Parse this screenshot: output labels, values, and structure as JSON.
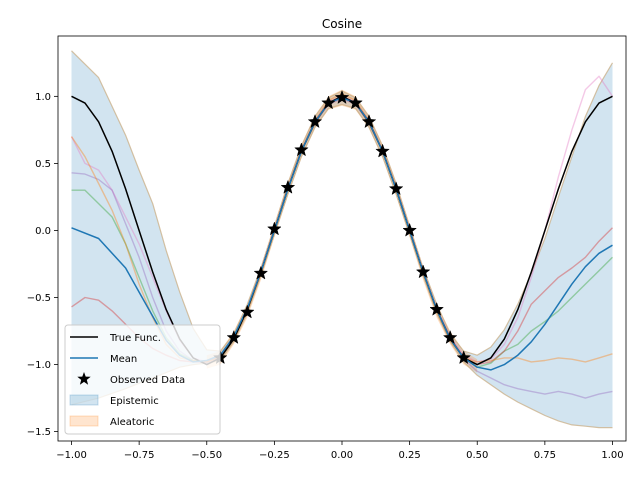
{
  "chart_data": {
    "type": "line",
    "title": "Cosine",
    "xlim": [
      -1.05,
      1.05
    ],
    "ylim": [
      -1.57,
      1.45
    ],
    "x_ticks": [
      -1.0,
      -0.75,
      -0.5,
      -0.25,
      0.0,
      0.25,
      0.5,
      0.75,
      1.0
    ],
    "x_tick_labels": [
      "−1.00",
      "−0.75",
      "−0.50",
      "−0.25",
      "0.00",
      "0.25",
      "0.50",
      "0.75",
      "1.00"
    ],
    "y_ticks": [
      -1.5,
      -1.0,
      -0.5,
      0.0,
      0.5,
      1.0
    ],
    "y_tick_labels": [
      "−1.5",
      "−1.0",
      "−0.5",
      "0.0",
      "0.5",
      "1.0"
    ],
    "grid": false,
    "legend_position": "lower-left",
    "true_function": {
      "name": "True Func.",
      "color": "#000000",
      "x": [
        -1.0,
        -0.95,
        -0.9,
        -0.85,
        -0.8,
        -0.75,
        -0.7,
        -0.65,
        -0.6,
        -0.55,
        -0.5,
        -0.45,
        -0.4,
        -0.35,
        -0.3,
        -0.25,
        -0.2,
        -0.15,
        -0.1,
        -0.05,
        0.0,
        0.05,
        0.1,
        0.15,
        0.2,
        0.25,
        0.3,
        0.35,
        0.4,
        0.45,
        0.5,
        0.55,
        0.6,
        0.65,
        0.7,
        0.75,
        0.8,
        0.85,
        0.9,
        0.95,
        1.0
      ],
      "y": [
        1.0,
        0.95,
        0.81,
        0.59,
        0.31,
        0.0,
        -0.31,
        -0.59,
        -0.81,
        -0.95,
        -1.0,
        -0.95,
        -0.81,
        -0.59,
        -0.31,
        0.0,
        0.31,
        0.59,
        0.81,
        0.95,
        1.0,
        0.95,
        0.81,
        0.59,
        0.31,
        0.0,
        -0.31,
        -0.59,
        -0.81,
        -0.95,
        -1.0,
        -0.95,
        -0.81,
        -0.59,
        -0.31,
        0.0,
        0.31,
        0.59,
        0.81,
        0.95,
        1.0
      ]
    },
    "mean": {
      "name": "Mean",
      "color": "#1f77b4",
      "x": [
        -1.0,
        -0.9,
        -0.8,
        -0.75,
        -0.7,
        -0.65,
        -0.6,
        -0.55,
        -0.5,
        -0.45,
        -0.4,
        -0.35,
        -0.3,
        -0.25,
        -0.2,
        -0.15,
        -0.1,
        -0.05,
        0.0,
        0.05,
        0.1,
        0.15,
        0.2,
        0.25,
        0.3,
        0.35,
        0.4,
        0.45,
        0.5,
        0.55,
        0.6,
        0.65,
        0.7,
        0.75,
        0.8,
        0.85,
        0.9,
        0.95,
        1.0
      ],
      "y": [
        0.02,
        -0.06,
        -0.28,
        -0.46,
        -0.64,
        -0.82,
        -0.93,
        -0.98,
        -0.97,
        -0.93,
        -0.79,
        -0.58,
        -0.31,
        0.0,
        0.31,
        0.59,
        0.81,
        0.95,
        0.99,
        0.95,
        0.81,
        0.59,
        0.31,
        0.0,
        -0.31,
        -0.59,
        -0.81,
        -0.95,
        -1.02,
        -1.04,
        -1.0,
        -0.93,
        -0.83,
        -0.7,
        -0.55,
        -0.4,
        -0.27,
        -0.17,
        -0.11
      ]
    },
    "observed_data": {
      "name": "Observed Data",
      "color": "#000000",
      "x": [
        -0.45,
        -0.4,
        -0.35,
        -0.3,
        -0.25,
        -0.2,
        -0.15,
        -0.1,
        -0.05,
        0.0,
        0.05,
        0.1,
        0.15,
        0.2,
        0.25,
        0.3,
        0.35,
        0.4,
        0.45
      ],
      "y": [
        -0.95,
        -0.8,
        -0.61,
        -0.32,
        0.01,
        0.32,
        0.6,
        0.81,
        0.95,
        0.99,
        0.95,
        0.81,
        0.59,
        0.31,
        0.0,
        -0.31,
        -0.59,
        -0.8,
        -0.95
      ]
    },
    "epistemic": {
      "name": "Epistemic",
      "color": "#1f77b4",
      "x": [
        -1.0,
        -0.9,
        -0.8,
        -0.75,
        -0.7,
        -0.65,
        -0.6,
        -0.55,
        -0.5,
        -0.45,
        -0.4,
        -0.35,
        -0.3,
        -0.25,
        -0.2,
        -0.15,
        -0.1,
        -0.05,
        0.0,
        0.05,
        0.1,
        0.15,
        0.2,
        0.25,
        0.3,
        0.35,
        0.4,
        0.45,
        0.5,
        0.55,
        0.6,
        0.65,
        0.7,
        0.75,
        0.8,
        0.85,
        0.9,
        0.95,
        1.0
      ],
      "upper": [
        1.34,
        1.14,
        0.71,
        0.45,
        0.2,
        -0.15,
        -0.46,
        -0.73,
        -0.89,
        -0.9,
        -0.77,
        -0.55,
        -0.28,
        0.03,
        0.35,
        0.63,
        0.85,
        0.99,
        1.04,
        0.99,
        0.85,
        0.63,
        0.35,
        0.03,
        -0.28,
        -0.55,
        -0.77,
        -0.9,
        -0.93,
        -0.87,
        -0.74,
        -0.55,
        -0.32,
        -0.06,
        0.25,
        0.55,
        0.85,
        1.08,
        1.25
      ],
      "lower": [
        -1.3,
        -1.25,
        -1.18,
        -1.14,
        -1.1,
        -1.06,
        -1.02,
        -1.0,
        -0.99,
        -0.97,
        -0.83,
        -0.62,
        -0.34,
        -0.03,
        0.27,
        0.55,
        0.77,
        0.91,
        0.94,
        0.91,
        0.77,
        0.55,
        0.27,
        -0.03,
        -0.34,
        -0.62,
        -0.83,
        -0.98,
        -1.08,
        -1.15,
        -1.22,
        -1.28,
        -1.33,
        -1.38,
        -1.42,
        -1.45,
        -1.46,
        -1.47,
        -1.47
      ]
    },
    "aleatoric": {
      "name": "Aleatoric",
      "color": "#ff7f0e",
      "x": [
        -0.5,
        -0.45,
        -0.4,
        -0.35,
        -0.3,
        -0.25,
        -0.2,
        -0.15,
        -0.1,
        -0.05,
        0.0,
        0.05,
        0.1,
        0.15,
        0.2,
        0.25,
        0.3,
        0.35,
        0.4,
        0.45,
        0.5
      ],
      "upper": [
        -0.93,
        -0.9,
        -0.75,
        -0.55,
        -0.27,
        0.05,
        0.36,
        0.64,
        0.86,
        1.0,
        1.05,
        1.0,
        0.86,
        0.64,
        0.36,
        0.05,
        -0.27,
        -0.55,
        -0.75,
        -0.9,
        -0.96
      ],
      "lower": [
        -1.03,
        -1.0,
        -0.85,
        -0.65,
        -0.37,
        -0.05,
        0.26,
        0.54,
        0.76,
        0.9,
        0.93,
        0.9,
        0.76,
        0.54,
        0.26,
        -0.05,
        -0.37,
        -0.65,
        -0.85,
        -1.0,
        -1.06
      ]
    },
    "samples": [
      {
        "color": "#e377c2",
        "x": [
          -1.0,
          -0.95,
          -0.9,
          -0.85,
          -0.8,
          -0.75,
          -0.7,
          -0.65,
          -0.6,
          -0.55,
          -0.5,
          -0.45,
          -0.4,
          -0.35,
          -0.3,
          -0.25,
          -0.2,
          -0.15,
          -0.1,
          -0.05,
          0.0,
          0.05,
          0.1,
          0.15,
          0.2,
          0.25,
          0.3,
          0.35,
          0.4,
          0.45,
          0.5,
          0.55,
          0.6,
          0.65,
          0.7,
          0.75,
          0.8,
          0.85,
          0.9,
          0.95,
          1.0
        ],
        "y": [
          0.7,
          0.5,
          0.45,
          0.3,
          0.1,
          -0.1,
          -0.35,
          -0.6,
          -0.82,
          -0.95,
          -0.98,
          -0.93,
          -0.79,
          -0.58,
          -0.3,
          0.01,
          0.32,
          0.6,
          0.82,
          0.96,
          1.0,
          0.96,
          0.82,
          0.6,
          0.32,
          0.01,
          -0.3,
          -0.58,
          -0.79,
          -0.93,
          -0.98,
          -0.96,
          -0.85,
          -0.65,
          -0.35,
          0.0,
          0.4,
          0.75,
          1.05,
          1.15,
          1.0
        ]
      },
      {
        "color": "#9467bd",
        "x": [
          -1.0,
          -0.95,
          -0.9,
          -0.85,
          -0.8,
          -0.75,
          -0.7,
          -0.65,
          -0.6,
          -0.55,
          -0.5,
          -0.45,
          -0.4,
          -0.35,
          -0.3,
          -0.25,
          -0.2,
          -0.15,
          -0.1,
          -0.05,
          0.0,
          0.05,
          0.1,
          0.15,
          0.2,
          0.25,
          0.3,
          0.35,
          0.4,
          0.45,
          0.5,
          0.55,
          0.6,
          0.65,
          0.7,
          0.75,
          0.8,
          0.85,
          0.9,
          0.95,
          1.0
        ],
        "y": [
          0.43,
          0.42,
          0.38,
          0.3,
          0.05,
          -0.2,
          -0.5,
          -0.75,
          -0.9,
          -0.97,
          -0.99,
          -0.94,
          -0.8,
          -0.59,
          -0.31,
          0.0,
          0.31,
          0.59,
          0.8,
          0.94,
          0.98,
          0.94,
          0.8,
          0.59,
          0.31,
          0.0,
          -0.31,
          -0.59,
          -0.8,
          -0.96,
          -1.05,
          -1.1,
          -1.15,
          -1.18,
          -1.2,
          -1.22,
          -1.2,
          -1.22,
          -1.25,
          -1.22,
          -1.2
        ]
      },
      {
        "color": "#2ca02c",
        "x": [
          -1.0,
          -0.95,
          -0.9,
          -0.85,
          -0.8,
          -0.75,
          -0.7,
          -0.65,
          -0.6,
          -0.55,
          -0.5,
          -0.45,
          -0.4,
          -0.35,
          -0.3,
          -0.25,
          -0.2,
          -0.15,
          -0.1,
          -0.05,
          0.0,
          0.05,
          0.1,
          0.15,
          0.2,
          0.25,
          0.3,
          0.35,
          0.4,
          0.45,
          0.5,
          0.55,
          0.6,
          0.65,
          0.7,
          0.75,
          0.8,
          0.85,
          0.9,
          0.95,
          1.0
        ],
        "y": [
          0.3,
          0.3,
          0.2,
          0.1,
          -0.1,
          -0.35,
          -0.6,
          -0.8,
          -0.92,
          -0.97,
          -0.98,
          -0.94,
          -0.8,
          -0.59,
          -0.31,
          0.0,
          0.31,
          0.59,
          0.8,
          0.95,
          0.99,
          0.95,
          0.8,
          0.59,
          0.31,
          0.0,
          -0.31,
          -0.59,
          -0.8,
          -0.95,
          -1.02,
          -0.99,
          -0.9,
          -0.85,
          -0.75,
          -0.68,
          -0.6,
          -0.5,
          -0.4,
          -0.3,
          -0.2
        ]
      },
      {
        "color": "#d62728",
        "x": [
          -1.0,
          -0.95,
          -0.9,
          -0.85,
          -0.8,
          -0.75,
          -0.7,
          -0.65,
          -0.6,
          -0.55,
          -0.5,
          -0.45,
          -0.4,
          -0.35,
          -0.3,
          -0.25,
          -0.2,
          -0.15,
          -0.1,
          -0.05,
          0.0,
          0.05,
          0.1,
          0.15,
          0.2,
          0.25,
          0.3,
          0.35,
          0.4,
          0.45,
          0.5,
          0.55,
          0.6,
          0.65,
          0.7,
          0.75,
          0.8,
          0.85,
          0.9,
          0.95,
          1.0
        ],
        "y": [
          -0.57,
          -0.5,
          -0.52,
          -0.6,
          -0.7,
          -0.8,
          -0.88,
          -0.93,
          -0.97,
          -0.98,
          -0.98,
          -0.94,
          -0.8,
          -0.59,
          -0.31,
          0.0,
          0.31,
          0.59,
          0.8,
          0.95,
          0.99,
          0.95,
          0.8,
          0.59,
          0.31,
          0.0,
          -0.31,
          -0.59,
          -0.8,
          -0.95,
          -1.0,
          -0.98,
          -0.9,
          -0.75,
          -0.55,
          -0.45,
          -0.35,
          -0.28,
          -0.2,
          -0.08,
          0.02
        ]
      },
      {
        "color": "#ff7f0e",
        "x": [
          -1.0,
          -0.95,
          -0.9,
          -0.85,
          -0.8,
          -0.75,
          -0.7,
          -0.65,
          -0.6,
          -0.55,
          -0.5,
          -0.45,
          -0.4,
          -0.35,
          -0.3,
          -0.25,
          -0.2,
          -0.15,
          -0.1,
          -0.05,
          0.0,
          0.05,
          0.1,
          0.15,
          0.2,
          0.25,
          0.3,
          0.35,
          0.4,
          0.45,
          0.5,
          0.55,
          0.6,
          0.65,
          0.7,
          0.75,
          0.8,
          0.85,
          0.9,
          0.95,
          1.0
        ],
        "y": [
          0.7,
          0.55,
          0.35,
          0.15,
          -0.1,
          -0.4,
          -0.65,
          -0.85,
          -0.95,
          -0.97,
          -0.98,
          -0.95,
          -0.81,
          -0.6,
          -0.32,
          0.0,
          0.32,
          0.6,
          0.82,
          0.97,
          1.02,
          0.97,
          0.82,
          0.6,
          0.32,
          0.0,
          -0.32,
          -0.6,
          -0.82,
          -0.95,
          -0.98,
          -0.97,
          -0.95,
          -0.95,
          -0.98,
          -0.97,
          -0.95,
          -0.96,
          -0.98,
          -0.95,
          -0.92
        ]
      }
    ],
    "legend": [
      {
        "label": "True Func.",
        "kind": "line",
        "color": "#000000"
      },
      {
        "label": "Mean",
        "kind": "line",
        "color": "#1f77b4"
      },
      {
        "label": "Observed Data",
        "kind": "star",
        "color": "#000000"
      },
      {
        "label": "Epistemic",
        "kind": "patch",
        "color": "#1f77b4"
      },
      {
        "label": "Aleatoric",
        "kind": "patch",
        "color": "#ff7f0e"
      }
    ]
  }
}
